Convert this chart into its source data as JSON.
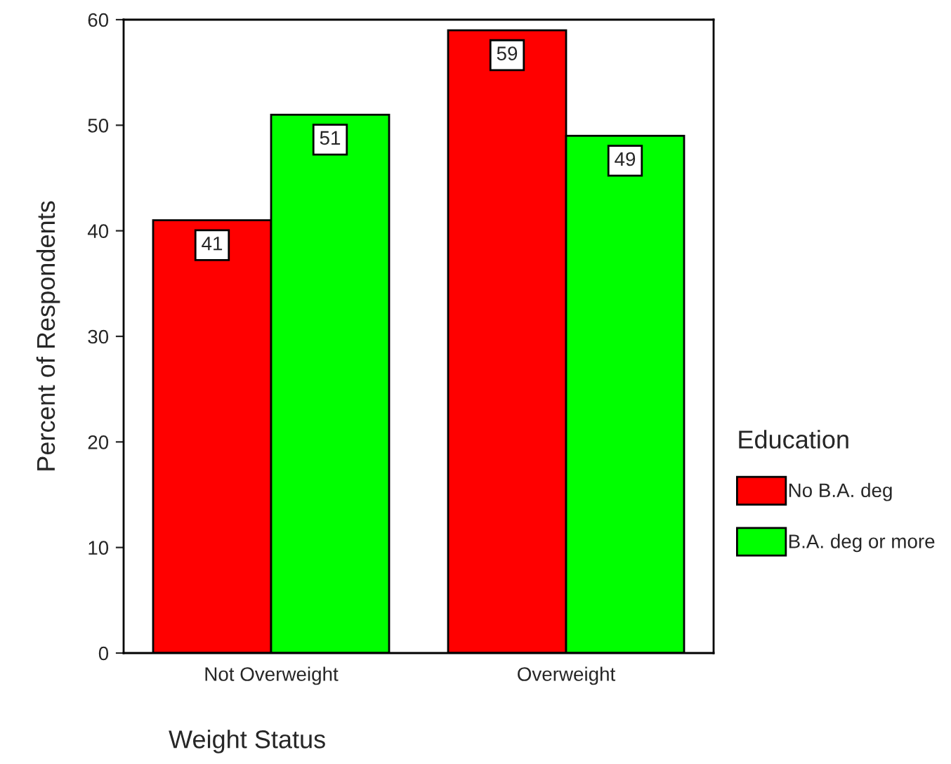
{
  "chart_data": {
    "type": "bar",
    "xlabel": "Weight Status",
    "ylabel": "Percent of Respondents",
    "legend_title": "Education",
    "categories": [
      "Not Overweight",
      "Overweight"
    ],
    "series": [
      {
        "name": "No B.A. deg",
        "color": "#ff0000",
        "values": [
          41,
          59
        ]
      },
      {
        "name": "B.A. deg or more",
        "color": "#00ff00",
        "values": [
          51,
          49
        ]
      }
    ],
    "ylim": [
      0,
      60
    ],
    "yticks": [
      0,
      10,
      20,
      30,
      40,
      50,
      60
    ],
    "data_labels": true,
    "grid": false,
    "legend": "right"
  }
}
